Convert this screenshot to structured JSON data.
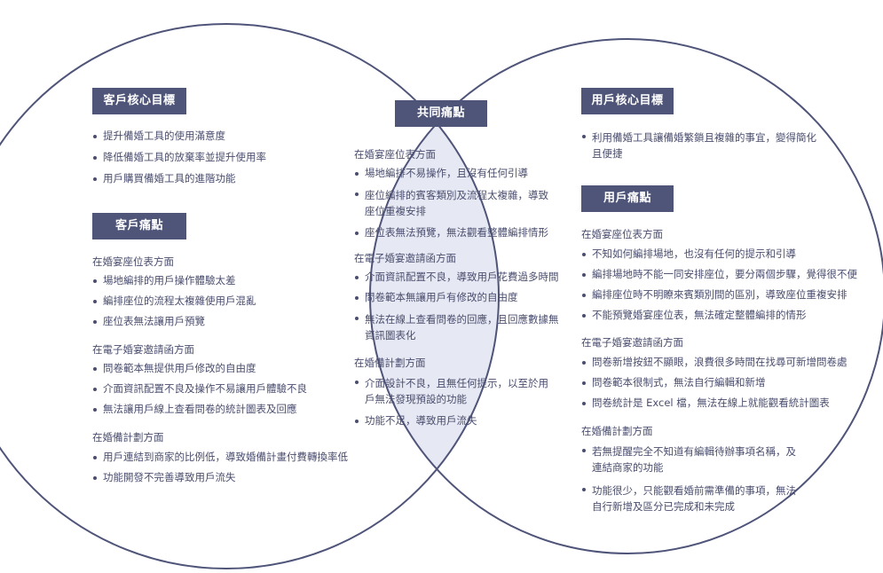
{
  "colors": {
    "outline": "#4f5479",
    "overlap_fill": "#e6e8f3",
    "tag_bg": "#4f5479"
  },
  "left": {
    "goal_tag": "客戶核心目標",
    "goal_items": [
      "提升備婚工具的使用滿意度",
      "降低備婚工具的放棄率並提升使用率",
      "用戶購買備婚工具的進階功能"
    ],
    "pain_tag": "客戶痛點",
    "sections": [
      {
        "title": "在婚宴座位表方面",
        "items": [
          "場地編排的用戶操作體驗太差",
          "編排座位的流程太複雜使用戶混亂",
          "座位表無法讓用戶預覽"
        ]
      },
      {
        "title": "在電子婚宴邀請函方面",
        "items": [
          "問卷範本無提供用戶修改的自由度",
          "介面資訊配置不良及操作不易讓用戶體驗不良",
          "無法讓用戶線上查看問卷的統計圖表及回應"
        ]
      },
      {
        "title": "在婚備計劃方面",
        "items": [
          "用戶連結到商家的比例低，導致婚備計畫付費轉換率低",
          "功能開發不完善導致用戶流失"
        ]
      }
    ]
  },
  "center": {
    "tag": "共同痛點",
    "sections": [
      {
        "title": "在婚宴座位表方面",
        "items": [
          "場地編排不易操作，且沒有任何引導",
          "座位編排的賓客類別及流程太複雜，導致座位重複安排",
          "座位表無法預覽，無法觀看整體編排情形"
        ]
      },
      {
        "title": "在電子婚宴邀請函方面",
        "items": [
          "介面資訊配置不良，導致用戶花費過多時間",
          "問卷範本無讓用戶有修改的自由度",
          "無法在線上查看問卷的回應，且回應數據無資訊圖表化"
        ]
      },
      {
        "title": "在婚備計劃方面",
        "items": [
          "介面設計不良，且無任何提示，以至於用戶無法發現預設的功能",
          "功能不足，導致用戶流失"
        ]
      }
    ]
  },
  "right": {
    "goal_tag": "用戶核心目標",
    "goal_items": [
      "利用備婚工具讓備婚繁鎖且複雜的事宜，變得簡化且便捷"
    ],
    "pain_tag": "用戶痛點",
    "sections": [
      {
        "title": "在婚宴座位表方面",
        "items": [
          "不知如何編排場地，也沒有任何的提示和引導",
          "編排場地時不能一同安排座位，要分兩個步驟，覺得很不便",
          "編排座位時不明瞭來賓類別間的區別，導致座位重複安排",
          "不能預覽婚宴座位表，無法確定整體編排的情形"
        ]
      },
      {
        "title": "在電子婚宴邀請函方面",
        "items": [
          "問卷新增按鈕不顯眼，浪費很多時間在找尋可新增問卷處",
          "問卷範本很制式，無法自行編輯和新增",
          "問卷統計是 Excel 檔，無法在線上就能觀看統計圖表"
        ]
      },
      {
        "title": "在婚備計劃方面",
        "items": [
          "若無提醒完全不知道有編輯待辦事項名稱，及連結商家的功能",
          "功能很少，只能觀看婚前需準備的事項，無法自行新增及區分已完成和未完成"
        ]
      }
    ]
  }
}
